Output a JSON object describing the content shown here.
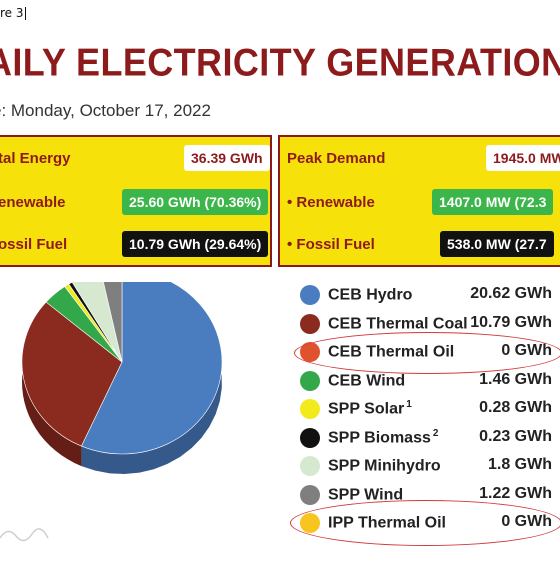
{
  "caption": "re 3",
  "title": "AILY ELECTRICITY GENERATION",
  "date": "e: Monday, October 17, 2022",
  "summary": {
    "left": [
      {
        "label": "tal Energy",
        "value": "36.39 GWh",
        "style": "white"
      },
      {
        "label": "enewable",
        "value": "25.60 GWh (70.36%)",
        "style": "green"
      },
      {
        "label": "ossil Fuel",
        "value": "10.79 GWh (29.64%)",
        "style": "black"
      }
    ],
    "right": [
      {
        "label": "Peak Demand",
        "value": "1945.0 MW",
        "style": "white"
      },
      {
        "label": "• Renewable",
        "value": "1407.0 MW (72.3",
        "style": "green"
      },
      {
        "label": "• Fossil Fuel",
        "value": "538.0 MW (27.7",
        "style": "black"
      }
    ]
  },
  "legend": [
    {
      "name": "CEB Hydro",
      "sup": "",
      "value": "20.62 GWh",
      "color": "#4a7cc0"
    },
    {
      "name": "CEB Thermal Coal",
      "sup": "",
      "value": "10.79 GWh",
      "color": "#8b2a1f"
    },
    {
      "name": "CEB Thermal Oil",
      "sup": "",
      "value": "0 GWh",
      "color": "#e0522e"
    },
    {
      "name": "CEB Wind",
      "sup": "",
      "value": "1.46 GWh",
      "color": "#33a84a"
    },
    {
      "name": "SPP Solar",
      "sup": "1",
      "value": "0.28 GWh",
      "color": "#f3ea1c"
    },
    {
      "name": "SPP Biomass",
      "sup": "2",
      "value": "0.23 GWh",
      "color": "#111111"
    },
    {
      "name": "SPP Minihydro",
      "sup": "",
      "value": "1.8 GWh",
      "color": "#d6e8cf"
    },
    {
      "name": "SPP Wind",
      "sup": "",
      "value": "1.22 GWh",
      "color": "#7f7f7f"
    },
    {
      "name": "IPP Thermal Oil",
      "sup": "",
      "value": "0 GWh",
      "color": "#f7c51e"
    }
  ],
  "chart_data": {
    "type": "pie",
    "categories": [
      "CEB Hydro",
      "CEB Thermal Coal",
      "CEB Thermal Oil",
      "CEB Wind",
      "SPP Solar",
      "SPP Biomass",
      "SPP Minihydro",
      "SPP Wind",
      "IPP Thermal Oil"
    ],
    "values": [
      20.62,
      10.79,
      0,
      1.46,
      0.28,
      0.23,
      1.8,
      1.22,
      0
    ],
    "colors": [
      "#4a7cc0",
      "#8b2a1f",
      "#e0522e",
      "#33a84a",
      "#f3ea1c",
      "#111111",
      "#d6e8cf",
      "#7f7f7f",
      "#f7c51e"
    ]
  }
}
